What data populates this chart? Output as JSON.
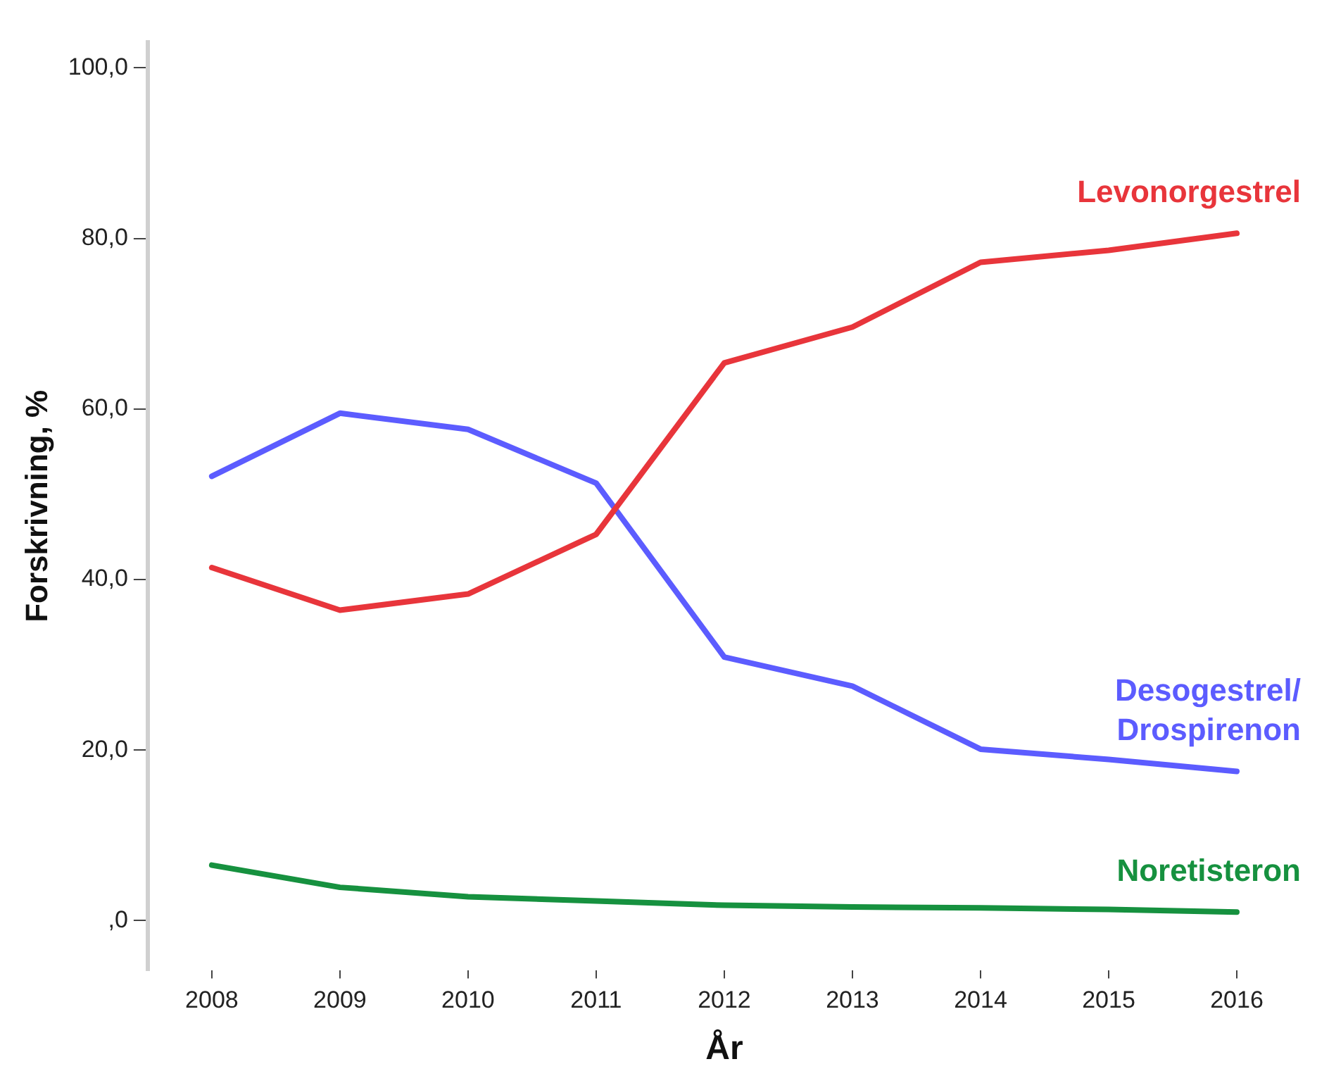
{
  "chart_data": {
    "type": "line",
    "xlabel": "År",
    "ylabel": "Forskrivning, %",
    "categories": [
      "2008",
      "2009",
      "2010",
      "2011",
      "2012",
      "2013",
      "2014",
      "2015",
      "2016"
    ],
    "ylim": [
      -5.8,
      103
    ],
    "yticks": [
      {
        "value": 0,
        "label": ",0"
      },
      {
        "value": 20,
        "label": "20,0"
      },
      {
        "value": 40,
        "label": "40,0"
      },
      {
        "value": 60,
        "label": "60,0"
      },
      {
        "value": 80,
        "label": "80,0"
      },
      {
        "value": 100,
        "label": "100,0"
      }
    ],
    "grid": false,
    "legend": false,
    "marker": "none",
    "line_style": "solid",
    "series": [
      {
        "name": "Levonorgestrel",
        "color": "#e8353b",
        "values": [
          41.4,
          36.4,
          38.3,
          45.3,
          65.4,
          69.6,
          77.2,
          78.6,
          80.6
        ]
      },
      {
        "name": "Desogestrel/\nDrospirenon",
        "color": "#5c5cff",
        "values": [
          52.1,
          59.5,
          57.6,
          51.3,
          30.9,
          27.5,
          20.1,
          18.9,
          17.5
        ]
      },
      {
        "name": "Noretisteron",
        "color": "#16913f",
        "values": [
          6.5,
          3.9,
          2.8,
          2.3,
          1.8,
          1.6,
          1.5,
          1.3,
          1.0
        ]
      }
    ]
  }
}
